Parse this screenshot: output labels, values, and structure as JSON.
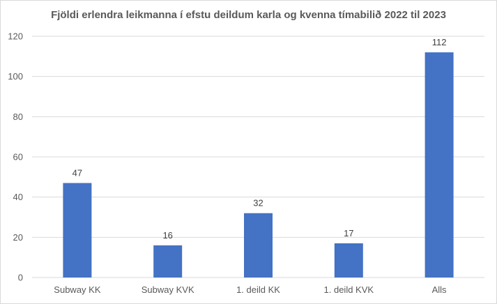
{
  "chart_data": {
    "type": "bar",
    "title": "Fjöldi erlendra leikmanna í efstu deildum karla og kvenna tímabilið 2022 til 2023",
    "categories": [
      "Subway KK",
      "Subway KVK",
      "1. deild KK",
      "1. deild KVK",
      "Alls"
    ],
    "values": [
      47,
      16,
      32,
      17,
      112
    ],
    "data_labels": [
      "47",
      "16",
      "32",
      "17",
      "112"
    ],
    "xlabel": "",
    "ylabel": "",
    "ylim": [
      0,
      120
    ],
    "yticks": [
      0,
      20,
      40,
      60,
      80,
      100,
      120
    ],
    "grid": true,
    "legend": "none",
    "bar_color": "#4472c4",
    "grid_color": "#d9d9d9"
  }
}
